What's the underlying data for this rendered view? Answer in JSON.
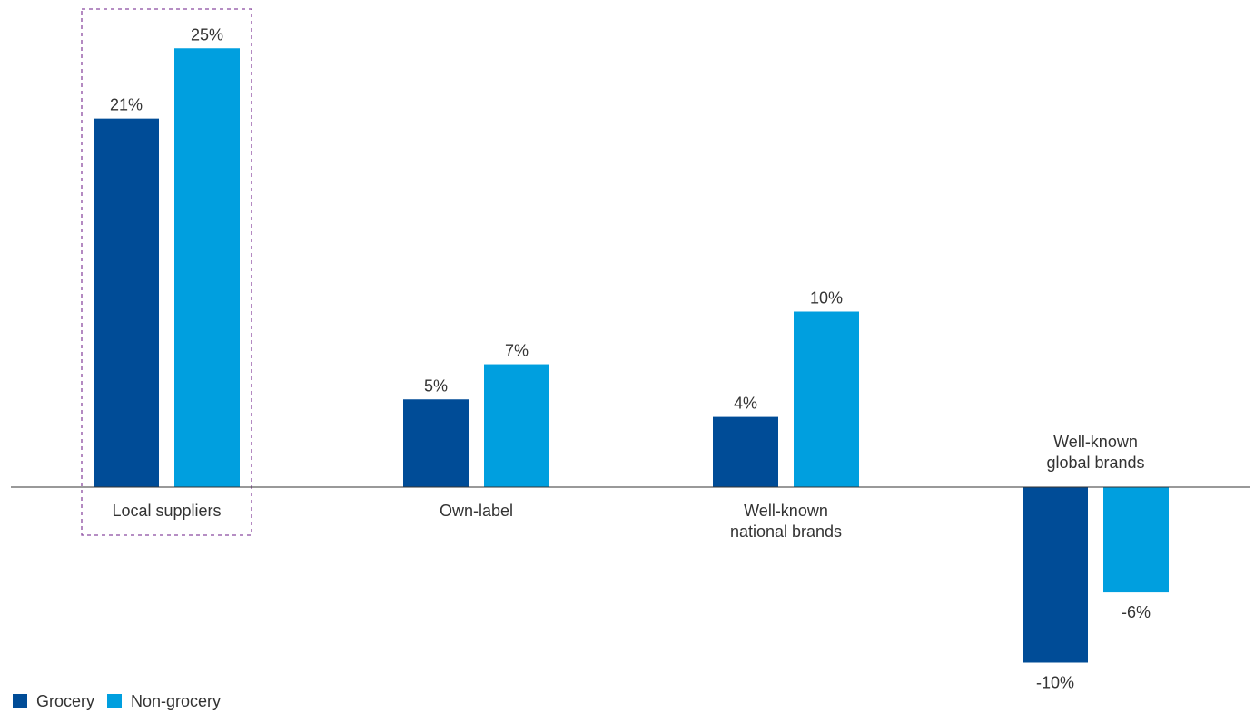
{
  "chart_data": {
    "type": "bar",
    "categories": [
      [
        "Local suppliers"
      ],
      [
        "Own-label"
      ],
      [
        "Well-known",
        "national brands"
      ],
      [
        "Well-known",
        "global brands"
      ]
    ],
    "series": [
      {
        "name": "Grocery",
        "color": "#004c97",
        "values": [
          21,
          5,
          4,
          -10
        ],
        "labels": [
          "21%",
          "5%",
          "4%",
          "-10%"
        ]
      },
      {
        "name": "Non-grocery",
        "color": "#009fdf",
        "values": [
          25,
          7,
          10,
          -6
        ],
        "labels": [
          "25%",
          "7%",
          "10%",
          "-6%"
        ]
      }
    ],
    "highlight_category": 0,
    "highlight_color": "#8b4aa0",
    "axis_color": "#333333",
    "ylim": [
      -10,
      25
    ],
    "value_format": "percent",
    "title": "",
    "xlabel": "",
    "ylabel": "",
    "grid": false,
    "legend_position": "bottom-left"
  }
}
